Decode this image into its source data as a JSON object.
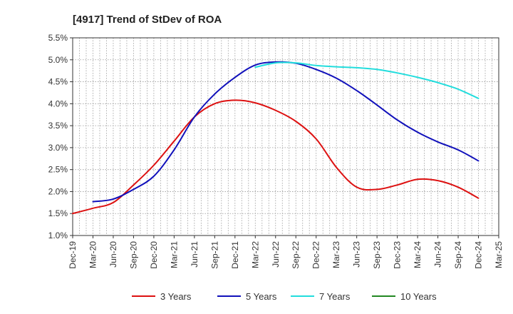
{
  "chart_data": {
    "type": "line",
    "title": "[4917]  Trend of StDev of ROA",
    "xlabel": "",
    "ylabel": "",
    "x_ticks": [
      "Dec-19",
      "Mar-20",
      "Jun-20",
      "Sep-20",
      "Dec-20",
      "Mar-21",
      "Jun-21",
      "Sep-21",
      "Dec-21",
      "Mar-22",
      "Jun-22",
      "Sep-22",
      "Dec-22",
      "Mar-23",
      "Jun-23",
      "Sep-23",
      "Dec-23",
      "Mar-24",
      "Jun-24",
      "Sep-24",
      "Dec-24",
      "Mar-25"
    ],
    "y_ticks": [
      "1.0%",
      "1.5%",
      "2.0%",
      "2.5%",
      "3.0%",
      "3.5%",
      "4.0%",
      "4.5%",
      "5.0%",
      "5.5%"
    ],
    "ylim": [
      1.0,
      5.5
    ],
    "grid": true,
    "legend_position": "bottom",
    "series": [
      {
        "name": "3 Years",
        "color": "#dd1111",
        "values": [
          1.5,
          1.62,
          1.75,
          2.15,
          2.6,
          3.15,
          3.7,
          4.0,
          4.08,
          4.02,
          3.85,
          3.6,
          3.2,
          2.55,
          2.1,
          2.05,
          2.15,
          2.28,
          2.25,
          2.1,
          1.85,
          null
        ]
      },
      {
        "name": "5 Years",
        "color": "#1111bb",
        "values": [
          null,
          1.77,
          1.83,
          2.05,
          2.35,
          2.95,
          3.7,
          4.22,
          4.6,
          4.88,
          4.95,
          4.92,
          4.78,
          4.58,
          4.3,
          3.97,
          3.63,
          3.35,
          3.13,
          2.95,
          2.7,
          null
        ]
      },
      {
        "name": "7 Years",
        "color": "#22dddd",
        "values": [
          null,
          null,
          null,
          null,
          null,
          null,
          null,
          null,
          null,
          4.83,
          4.93,
          4.93,
          4.87,
          4.84,
          4.82,
          4.78,
          4.7,
          4.6,
          4.48,
          4.33,
          4.12,
          null
        ]
      },
      {
        "name": "10 Years",
        "color": "#228822",
        "values": [
          null,
          null,
          null,
          null,
          null,
          null,
          null,
          null,
          null,
          null,
          null,
          null,
          null,
          null,
          null,
          null,
          null,
          null,
          null,
          null,
          null,
          null
        ]
      }
    ]
  }
}
